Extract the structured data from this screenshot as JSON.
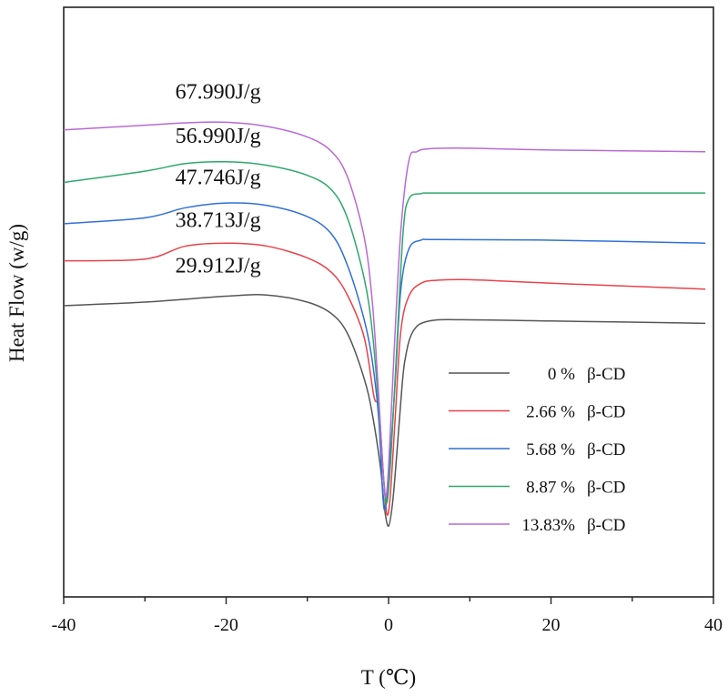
{
  "chart_data": {
    "type": "line",
    "title": "",
    "xlabel": "T (℃)",
    "ylabel": "Heat Flow (w/g)",
    "xlim": [
      -40,
      40
    ],
    "ylim": [
      0,
      1
    ],
    "x_ticks": [
      -40,
      -20,
      0,
      20,
      40
    ],
    "y_ticks": [],
    "grid": false,
    "legend_position": "lower-right",
    "series": [
      {
        "name": "0",
        "legend_label": "0   %",
        "legend_suffix": "β-CD",
        "color": "#555555",
        "points": [
          [
            -40,
            0.494
          ],
          [
            -30,
            0.5
          ],
          [
            -20,
            0.51
          ],
          [
            -15,
            0.512
          ],
          [
            -10,
            0.5
          ],
          [
            -7,
            0.48
          ],
          [
            -5,
            0.445
          ],
          [
            -3,
            0.37
          ],
          [
            -2,
            0.31
          ],
          [
            -1,
            0.22
          ],
          [
            -0.5,
            0.15
          ],
          [
            0,
            0.12
          ],
          [
            0.5,
            0.16
          ],
          [
            1,
            0.24
          ],
          [
            1.5,
            0.33
          ],
          [
            2,
            0.4
          ],
          [
            3,
            0.45
          ],
          [
            5,
            0.468
          ],
          [
            10,
            0.47
          ],
          [
            20,
            0.468
          ],
          [
            39,
            0.464
          ]
        ]
      },
      {
        "name": "2.66",
        "legend_label": "2.66 %",
        "legend_suffix": "β-CD",
        "color": "#e8424a",
        "points": [
          [
            -40,
            0.57
          ],
          [
            -30,
            0.573
          ],
          [
            -25,
            0.595
          ],
          [
            -20,
            0.6
          ],
          [
            -15,
            0.595
          ],
          [
            -10,
            0.575
          ],
          [
            -7,
            0.55
          ],
          [
            -5,
            0.51
          ],
          [
            -3,
            0.44
          ],
          [
            -1.8,
            0.34
          ],
          [
            -1.2,
            0.32
          ],
          [
            -0.6,
            0.2
          ],
          [
            -0.2,
            0.14
          ],
          [
            0.2,
            0.17
          ],
          [
            0.8,
            0.3
          ],
          [
            1.5,
            0.45
          ],
          [
            2.5,
            0.51
          ],
          [
            4,
            0.532
          ],
          [
            6,
            0.537
          ],
          [
            10,
            0.538
          ],
          [
            20,
            0.532
          ],
          [
            39,
            0.522
          ]
        ]
      },
      {
        "name": "5.68",
        "legend_label": "5.68 %",
        "legend_suffix": "β-CD",
        "color": "#2f6fd8",
        "points": [
          [
            -40,
            0.633
          ],
          [
            -30,
            0.643
          ],
          [
            -25,
            0.66
          ],
          [
            -20,
            0.668
          ],
          [
            -15,
            0.664
          ],
          [
            -10,
            0.645
          ],
          [
            -7,
            0.615
          ],
          [
            -5,
            0.56
          ],
          [
            -3,
            0.47
          ],
          [
            -2,
            0.4
          ],
          [
            -1.2,
            0.3
          ],
          [
            -0.7,
            0.17
          ],
          [
            -0.4,
            0.15
          ],
          [
            0,
            0.2
          ],
          [
            0.8,
            0.36
          ],
          [
            1.5,
            0.52
          ],
          [
            2.5,
            0.59
          ],
          [
            4,
            0.605
          ],
          [
            6,
            0.606
          ],
          [
            20,
            0.605
          ],
          [
            39,
            0.6
          ]
        ]
      },
      {
        "name": "8.87",
        "legend_label": "8.87 %",
        "legend_suffix": "β-CD",
        "color": "#2ea86b",
        "points": [
          [
            -40,
            0.703
          ],
          [
            -30,
            0.722
          ],
          [
            -25,
            0.735
          ],
          [
            -20,
            0.738
          ],
          [
            -15,
            0.732
          ],
          [
            -10,
            0.715
          ],
          [
            -7,
            0.69
          ],
          [
            -5,
            0.64
          ],
          [
            -3,
            0.54
          ],
          [
            -2,
            0.45
          ],
          [
            -1.2,
            0.32
          ],
          [
            -0.6,
            0.2
          ],
          [
            -0.2,
            0.16
          ],
          [
            0.3,
            0.24
          ],
          [
            1,
            0.42
          ],
          [
            1.8,
            0.62
          ],
          [
            2.5,
            0.675
          ],
          [
            4,
            0.684
          ],
          [
            6,
            0.685
          ],
          [
            20,
            0.685
          ],
          [
            39,
            0.685
          ]
        ]
      },
      {
        "name": "13.83",
        "legend_label": "13.83%",
        "legend_suffix": "β-CD",
        "color": "#b86ad4",
        "points": [
          [
            -40,
            0.792
          ],
          [
            -30,
            0.8
          ],
          [
            -25,
            0.804
          ],
          [
            -20,
            0.805
          ],
          [
            -15,
            0.798
          ],
          [
            -10,
            0.78
          ],
          [
            -7,
            0.755
          ],
          [
            -5,
            0.71
          ],
          [
            -3,
            0.61
          ],
          [
            -2,
            0.5
          ],
          [
            -1.3,
            0.36
          ],
          [
            -0.8,
            0.24
          ],
          [
            -0.4,
            0.17
          ],
          [
            0,
            0.22
          ],
          [
            0.7,
            0.42
          ],
          [
            1.5,
            0.62
          ],
          [
            2.5,
            0.74
          ],
          [
            3.5,
            0.755
          ],
          [
            5,
            0.76
          ],
          [
            10,
            0.761
          ],
          [
            20,
            0.758
          ],
          [
            39,
            0.755
          ]
        ]
      }
    ],
    "annotations": [
      {
        "text": "67.990J/g",
        "x": -21,
        "y": 0.845
      },
      {
        "text": "56.990J/g",
        "x": -21,
        "y": 0.77
      },
      {
        "text": "47.746J/g",
        "x": -21,
        "y": 0.7
      },
      {
        "text": "38.713J/g",
        "x": -21,
        "y": 0.627
      },
      {
        "text": "29.912J/g",
        "x": -21,
        "y": 0.55
      }
    ]
  }
}
